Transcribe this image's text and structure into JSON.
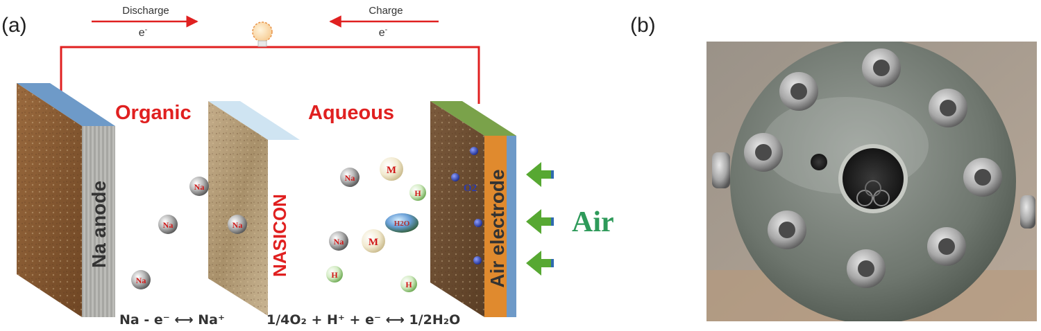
{
  "panels": {
    "a": {
      "label": "(a)"
    },
    "b": {
      "label": "(b)"
    }
  },
  "circuit": {
    "discharge_label": "Discharge",
    "charge_label": "Charge",
    "electron_left": "e",
    "electron_right": "e",
    "superscript_minus": "-"
  },
  "regions": {
    "organic": "Organic",
    "aqueous": "Aqueous",
    "air": "Air"
  },
  "components": {
    "anode": "Na anode",
    "separator": "NASICON",
    "cathode": "Air electrode"
  },
  "ions": {
    "na": "Na",
    "h": "H",
    "m": "M",
    "water": "H2O",
    "oxygen": "O2"
  },
  "equations": {
    "left": "Na - e⁻ ⟷ Na⁺",
    "right": "1/4O₂ + H⁺ + e⁻ ⟷ 1/2H₂O"
  },
  "colors": {
    "red": "#e02020",
    "air_green": "#2e9a5a",
    "arrow_green": "#57a832",
    "ion_blue": "#2a3bb0"
  }
}
